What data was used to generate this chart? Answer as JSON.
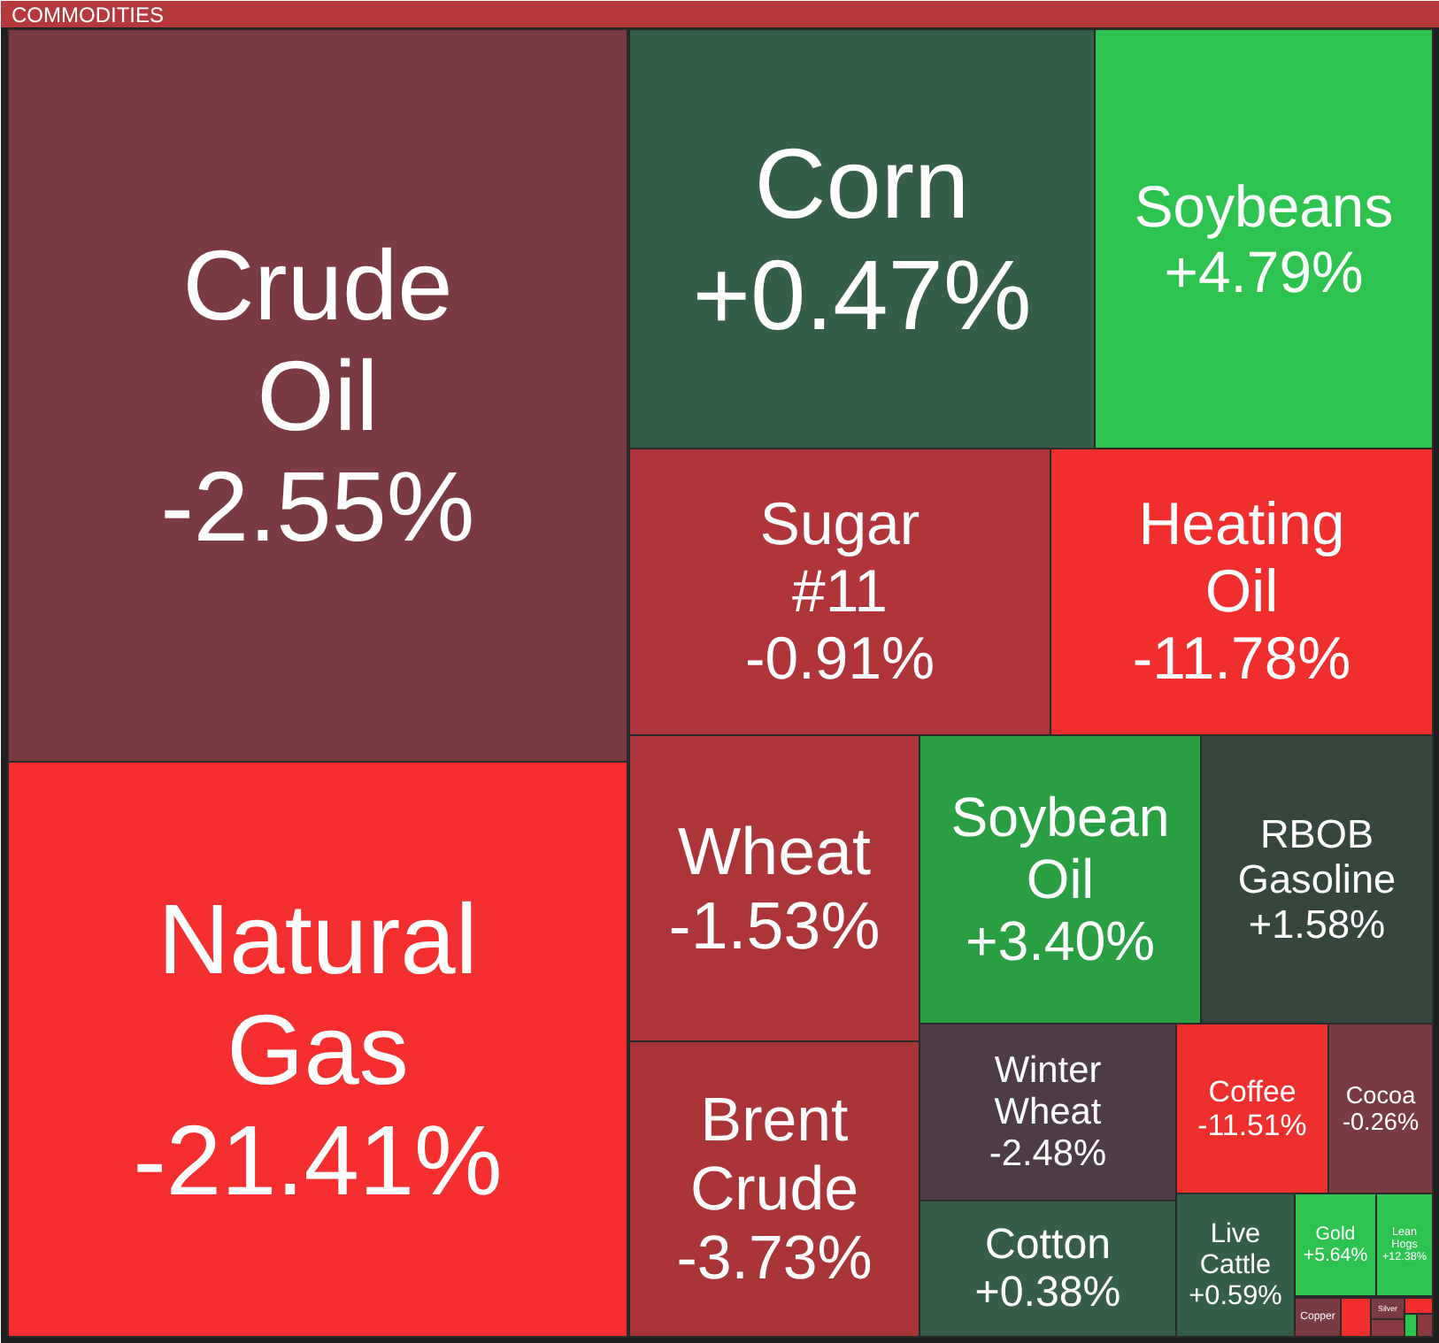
{
  "chart_data": {
    "type": "other",
    "title": "COMMODITIES",
    "categories": [
      "Crude Oil",
      "Natural Gas",
      "Corn",
      "Soybeans",
      "Sugar #11",
      "Heating Oil",
      "Wheat",
      "Brent Crude",
      "Soybean Oil",
      "RBOB Gasoline",
      "Winter Wheat",
      "Cotton",
      "Coffee",
      "Cocoa",
      "Live Cattle",
      "Gold",
      "Lean Hogs",
      "Copper",
      null,
      "Silver",
      null,
      null,
      null,
      null
    ],
    "values": [
      -2.55,
      -21.41,
      0.47,
      4.79,
      -0.91,
      -11.78,
      -1.53,
      -3.73,
      3.4,
      1.58,
      -2.48,
      0.38,
      -11.51,
      -0.26,
      0.59,
      5.64,
      12.38,
      null,
      null,
      null,
      null,
      null,
      null,
      null
    ],
    "value_labels": [
      "-2.55%",
      "-21.41%",
      "+0.47%",
      "+4.79%",
      "-0.91%",
      "-11.78%",
      "-1.53%",
      "-3.73%",
      "+3.40%",
      "+1.58%",
      "-2.48%",
      "+0.38%",
      "-11.51%",
      "-0.26%",
      "+0.59%",
      "+5.64%",
      "+12.38%",
      null,
      null,
      null,
      null,
      null,
      null,
      null
    ],
    "colors": [
      "#7a3a41",
      "#f52f2f",
      "#355e48",
      "#2ec350",
      "#b0353a",
      "#f02e2e",
      "#ab3539",
      "#aa3538",
      "#2a9e43",
      "#35463d",
      "#4d3c48",
      "#355d48",
      "#ef2e2e",
      "#7a3a41",
      "#355e48",
      "#2ec350",
      "#2ec350",
      "#7a3a41",
      "#f02e2e",
      "#7a3a41",
      "#8a3a41",
      "#f02e2e",
      "#2ec350",
      "#8a3a41"
    ]
  }
}
